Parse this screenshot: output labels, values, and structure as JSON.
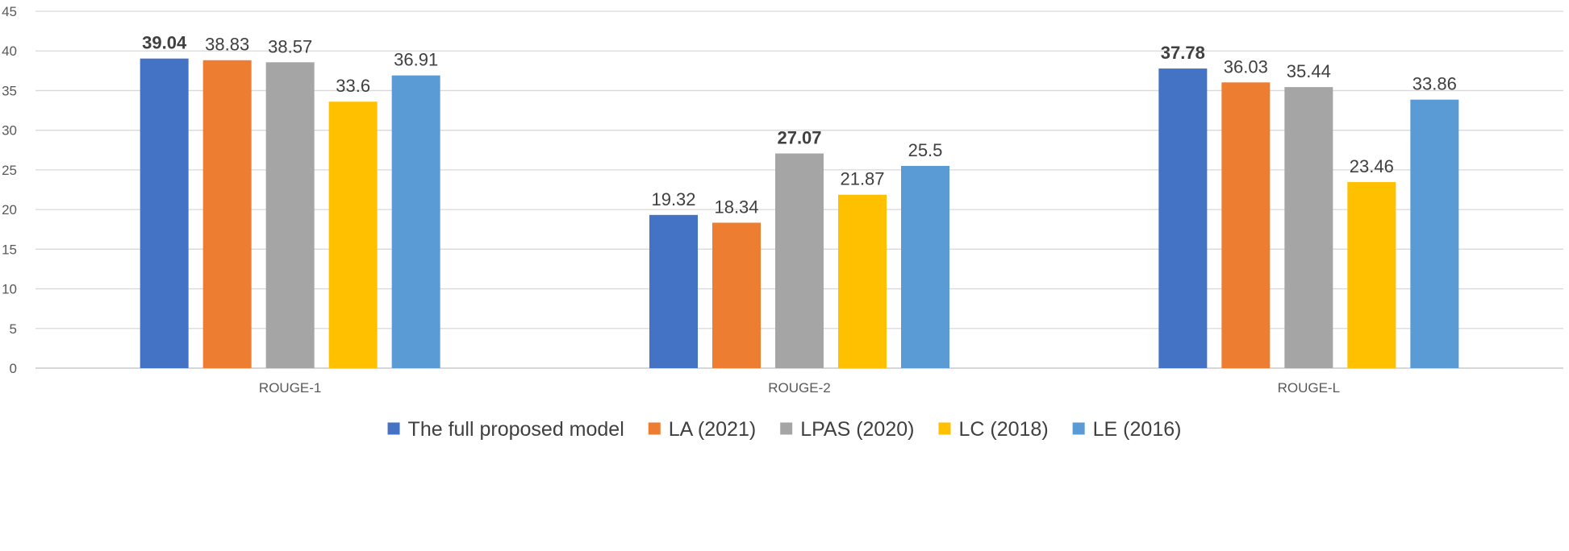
{
  "chart_data": {
    "type": "bar",
    "title": "",
    "xlabel": "",
    "ylabel": "",
    "ylim": [
      0,
      45
    ],
    "ytick_step": 5,
    "yticks": [
      "0",
      "5",
      "10",
      "15",
      "20",
      "25",
      "30",
      "35",
      "40",
      "45"
    ],
    "grid": true,
    "legend_position": "bottom",
    "categories": [
      "ROUGE-1",
      "ROUGE-2",
      "ROUGE-L"
    ],
    "series": [
      {
        "name": "The full proposed model",
        "color": "#4472C4",
        "values": [
          39.04,
          19.32,
          37.78
        ],
        "labels": [
          "39.04",
          "19.32",
          "37.78"
        ]
      },
      {
        "name": "LA (2021)",
        "color": "#ED7D31",
        "values": [
          38.83,
          18.34,
          36.03
        ],
        "labels": [
          "38.83",
          "18.34",
          "36.03"
        ]
      },
      {
        "name": "LPAS (2020)",
        "color": "#A5A5A5",
        "values": [
          38.57,
          27.07,
          35.44
        ],
        "labels": [
          "38.57",
          "27.07",
          "35.44"
        ]
      },
      {
        "name": "LC (2018)",
        "color": "#FFC000",
        "values": [
          33.6,
          21.87,
          23.46
        ],
        "labels": [
          "33.6",
          "21.87",
          "23.46"
        ]
      },
      {
        "name": "LE (2016)",
        "color": "#5B9BD5",
        "values": [
          36.91,
          25.5,
          33.86
        ],
        "labels": [
          "36.91",
          "25.5",
          "33.86"
        ]
      }
    ],
    "bold_labels": [
      [
        0,
        0
      ],
      [
        2,
        1
      ],
      [
        0,
        2
      ]
    ]
  }
}
